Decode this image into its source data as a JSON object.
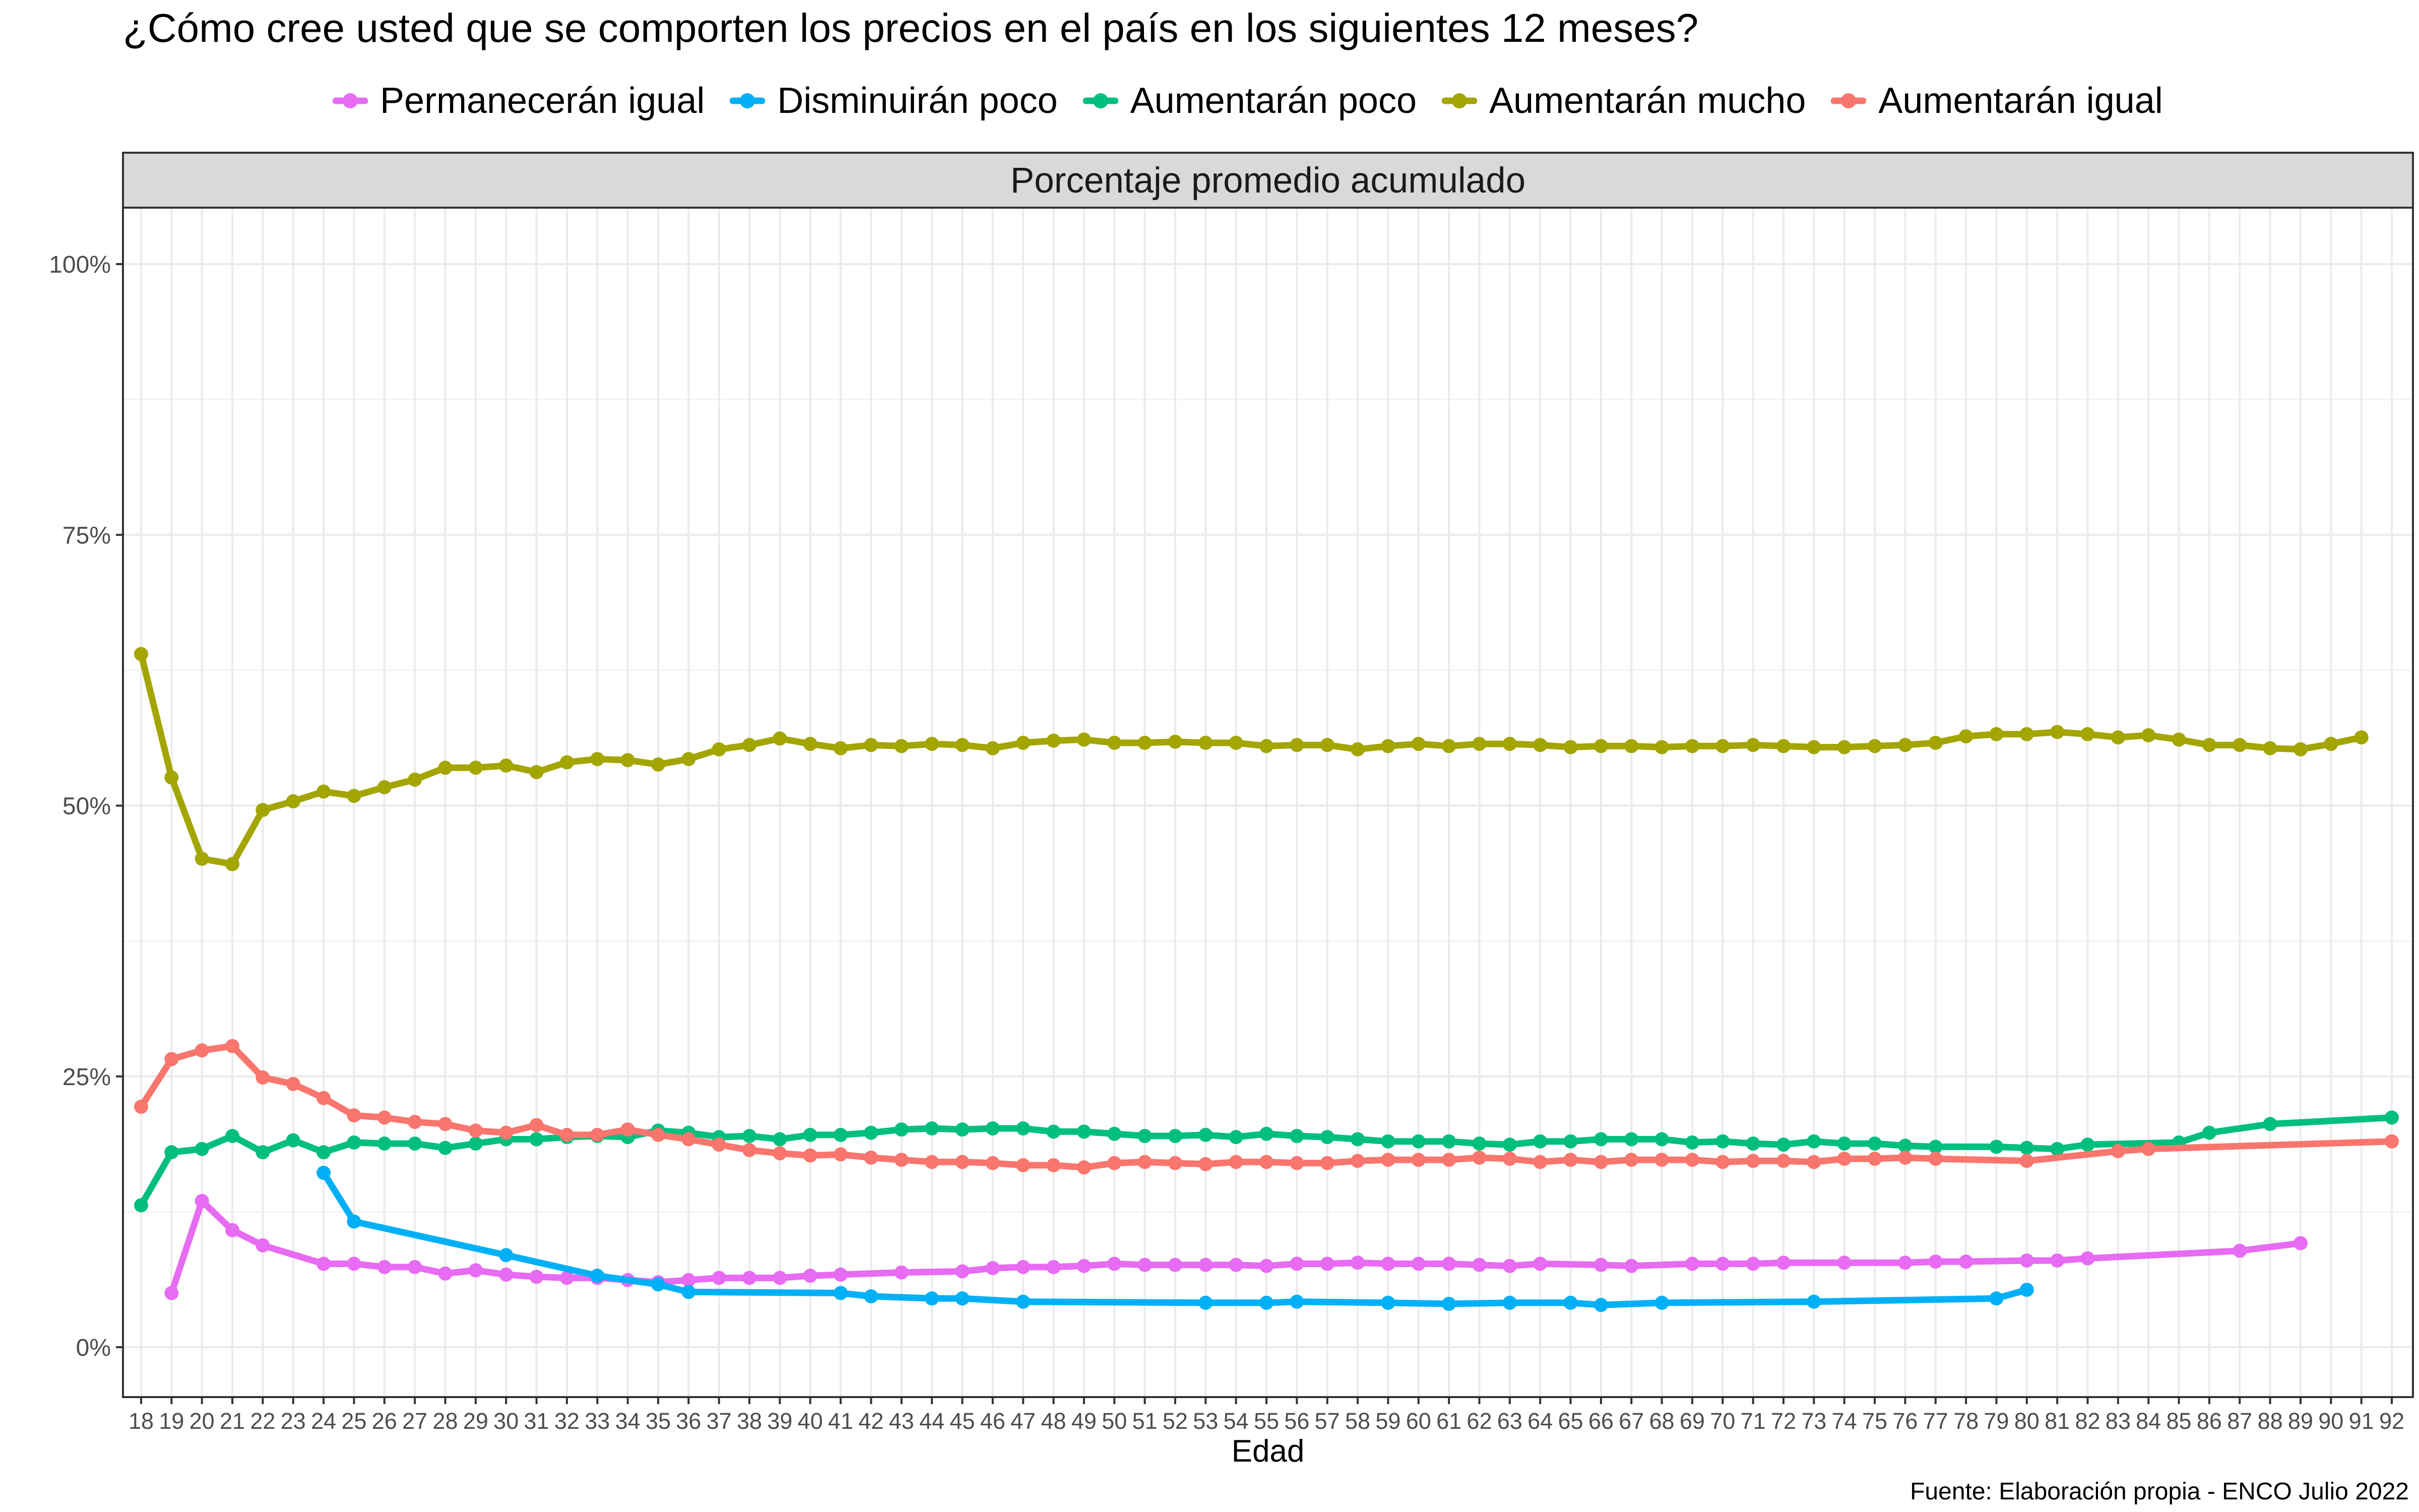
{
  "chart_data": {
    "type": "line",
    "title": "¿Cómo cree usted que se comporten los precios en el país en los siguientes 12 meses?",
    "panel_title": "Porcentaje promedio acumulado",
    "xlabel": "Edad",
    "ylabel": "",
    "source": "Fuente: Elaboración propia - ENCO Julio 2022",
    "xlim": [
      18,
      92
    ],
    "ylim": [
      0,
      1
    ],
    "x_ticks": [
      18,
      19,
      20,
      21,
      22,
      23,
      24,
      25,
      26,
      27,
      28,
      29,
      30,
      31,
      32,
      33,
      34,
      35,
      36,
      37,
      38,
      39,
      40,
      41,
      42,
      43,
      44,
      45,
      46,
      47,
      48,
      49,
      50,
      51,
      52,
      53,
      54,
      55,
      56,
      57,
      58,
      59,
      60,
      61,
      62,
      63,
      64,
      65,
      66,
      67,
      68,
      69,
      70,
      71,
      72,
      73,
      74,
      75,
      76,
      77,
      78,
      79,
      80,
      81,
      82,
      83,
      84,
      85,
      86,
      87,
      88,
      89,
      90,
      91,
      92
    ],
    "y_ticks": [
      {
        "value": 0,
        "label": "0%"
      },
      {
        "value": 0.25,
        "label": "25%"
      },
      {
        "value": 0.5,
        "label": "50%"
      },
      {
        "value": 0.75,
        "label": "75%"
      },
      {
        "value": 1.0,
        "label": "100%"
      }
    ],
    "grid": true,
    "legend_position": "top",
    "series": [
      {
        "name": "Permanecerán igual",
        "color": "#E76BF3",
        "x": [
          19,
          20,
          21,
          22,
          24,
          25,
          26,
          27,
          28,
          29,
          30,
          31,
          32,
          33,
          34,
          35,
          36,
          37,
          38,
          39,
          40,
          41,
          43,
          45,
          46,
          47,
          48,
          49,
          50,
          51,
          52,
          53,
          54,
          55,
          56,
          57,
          58,
          59,
          60,
          61,
          62,
          63,
          64,
          66,
          67,
          69,
          70,
          71,
          72,
          74,
          76,
          77,
          78,
          80,
          81,
          82,
          87,
          89
        ],
        "y": [
          0.05,
          0.135,
          0.108,
          0.094,
          0.077,
          0.077,
          0.074,
          0.074,
          0.068,
          0.071,
          0.067,
          0.065,
          0.064,
          0.064,
          0.062,
          0.06,
          0.062,
          0.064,
          0.064,
          0.064,
          0.066,
          0.067,
          0.069,
          0.07,
          0.073,
          0.074,
          0.074,
          0.075,
          0.077,
          0.076,
          0.076,
          0.076,
          0.076,
          0.075,
          0.077,
          0.077,
          0.078,
          0.077,
          0.077,
          0.077,
          0.076,
          0.075,
          0.077,
          0.076,
          0.075,
          0.077,
          0.077,
          0.077,
          0.078,
          0.078,
          0.078,
          0.079,
          0.079,
          0.08,
          0.08,
          0.082,
          0.089,
          0.096
        ]
      },
      {
        "name": "Disminuirán poco",
        "color": "#00B0F6",
        "x": [
          24,
          25,
          30,
          33,
          35,
          36,
          41,
          42,
          44,
          45,
          47,
          53,
          55,
          56,
          59,
          61,
          63,
          65,
          66,
          68,
          73,
          79,
          80
        ],
        "y": [
          0.161,
          0.116,
          0.085,
          0.066,
          0.058,
          0.051,
          0.05,
          0.047,
          0.045,
          0.045,
          0.042,
          0.041,
          0.041,
          0.042,
          0.041,
          0.04,
          0.041,
          0.041,
          0.039,
          0.041,
          0.042,
          0.045,
          0.053
        ]
      },
      {
        "name": "Aumentarán poco",
        "color": "#00BF7D",
        "x": [
          18,
          19,
          20,
          21,
          22,
          23,
          24,
          25,
          26,
          27,
          28,
          29,
          30,
          31,
          32,
          33,
          34,
          35,
          36,
          37,
          38,
          39,
          40,
          41,
          42,
          43,
          44,
          45,
          46,
          47,
          48,
          49,
          50,
          51,
          52,
          53,
          54,
          55,
          56,
          57,
          58,
          59,
          60,
          61,
          62,
          63,
          64,
          65,
          66,
          67,
          68,
          69,
          70,
          71,
          72,
          73,
          74,
          75,
          76,
          77,
          79,
          80,
          81,
          82,
          85,
          86,
          88,
          92
        ],
        "y": [
          0.131,
          0.18,
          0.183,
          0.195,
          0.18,
          0.191,
          0.18,
          0.189,
          0.188,
          0.188,
          0.184,
          0.188,
          0.192,
          0.192,
          0.194,
          0.195,
          0.194,
          0.2,
          0.198,
          0.194,
          0.195,
          0.192,
          0.196,
          0.196,
          0.198,
          0.201,
          0.202,
          0.201,
          0.202,
          0.202,
          0.199,
          0.199,
          0.197,
          0.195,
          0.195,
          0.196,
          0.194,
          0.197,
          0.195,
          0.194,
          0.192,
          0.19,
          0.19,
          0.19,
          0.188,
          0.187,
          0.19,
          0.19,
          0.192,
          0.192,
          0.192,
          0.189,
          0.19,
          0.188,
          0.187,
          0.19,
          0.188,
          0.188,
          0.186,
          0.185,
          0.185,
          0.184,
          0.183,
          0.187,
          0.189,
          0.198,
          0.206,
          0.212
        ]
      },
      {
        "name": "Aumentarán mucho",
        "color": "#A3A500",
        "x": [
          18,
          19,
          20,
          21,
          22,
          23,
          24,
          25,
          26,
          27,
          28,
          29,
          30,
          31,
          32,
          33,
          34,
          35,
          36,
          37,
          38,
          39,
          40,
          41,
          42,
          43,
          44,
          45,
          46,
          47,
          48,
          49,
          50,
          51,
          52,
          53,
          54,
          55,
          56,
          57,
          58,
          59,
          60,
          61,
          62,
          63,
          64,
          65,
          66,
          67,
          68,
          69,
          70,
          71,
          72,
          73,
          74,
          75,
          76,
          77,
          78,
          79,
          80,
          81,
          82,
          83,
          84,
          85,
          86,
          87,
          88,
          89,
          90,
          91
        ],
        "y": [
          0.64,
          0.526,
          0.451,
          0.446,
          0.496,
          0.504,
          0.513,
          0.509,
          0.517,
          0.524,
          0.535,
          0.535,
          0.537,
          0.531,
          0.54,
          0.543,
          0.542,
          0.538,
          0.543,
          0.552,
          0.556,
          0.562,
          0.557,
          0.553,
          0.556,
          0.555,
          0.557,
          0.556,
          0.553,
          0.558,
          0.56,
          0.561,
          0.558,
          0.558,
          0.559,
          0.558,
          0.558,
          0.555,
          0.556,
          0.556,
          0.552,
          0.555,
          0.557,
          0.555,
          0.557,
          0.557,
          0.556,
          0.554,
          0.555,
          0.555,
          0.554,
          0.555,
          0.555,
          0.556,
          0.555,
          0.554,
          0.554,
          0.555,
          0.556,
          0.558,
          0.564,
          0.566,
          0.566,
          0.568,
          0.566,
          0.563,
          0.565,
          0.561,
          0.556,
          0.556,
          0.553,
          0.552,
          0.557,
          0.563
        ]
      },
      {
        "name": "Aumentarán igual",
        "color": "#F8766D",
        "x": [
          18,
          19,
          20,
          21,
          22,
          23,
          24,
          25,
          26,
          27,
          28,
          29,
          30,
          31,
          32,
          33,
          34,
          35,
          36,
          37,
          38,
          39,
          40,
          41,
          42,
          43,
          44,
          45,
          46,
          47,
          48,
          49,
          50,
          51,
          52,
          53,
          54,
          55,
          56,
          57,
          58,
          59,
          60,
          61,
          62,
          63,
          64,
          65,
          66,
          67,
          68,
          69,
          70,
          71,
          72,
          73,
          74,
          75,
          76,
          77,
          80,
          83,
          84,
          92
        ],
        "y": [
          0.222,
          0.266,
          0.274,
          0.278,
          0.249,
          0.243,
          0.23,
          0.214,
          0.212,
          0.208,
          0.206,
          0.2,
          0.198,
          0.205,
          0.196,
          0.196,
          0.201,
          0.196,
          0.192,
          0.187,
          0.182,
          0.179,
          0.177,
          0.178,
          0.175,
          0.173,
          0.171,
          0.171,
          0.17,
          0.168,
          0.168,
          0.166,
          0.17,
          0.171,
          0.17,
          0.169,
          0.171,
          0.171,
          0.17,
          0.17,
          0.172,
          0.173,
          0.173,
          0.173,
          0.175,
          0.174,
          0.171,
          0.173,
          0.171,
          0.173,
          0.173,
          0.173,
          0.171,
          0.172,
          0.172,
          0.171,
          0.174,
          0.174,
          0.175,
          0.174,
          0.172,
          0.181,
          0.183,
          0.19
        ]
      }
    ]
  }
}
